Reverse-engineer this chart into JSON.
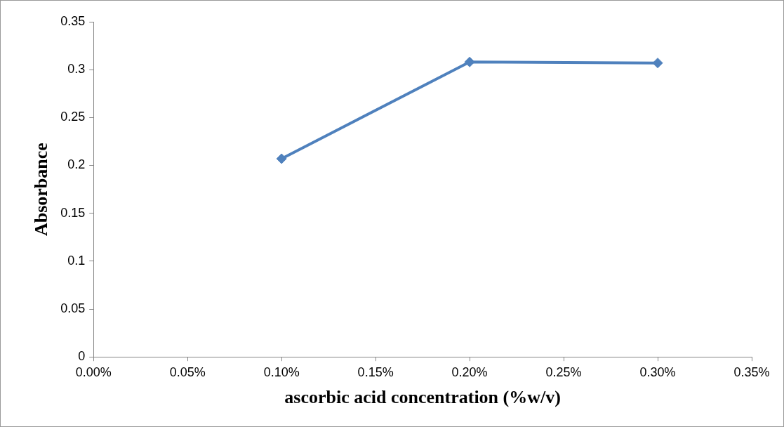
{
  "chart_data": {
    "type": "line",
    "xlabel": "ascorbic acid concentration (%w/v)",
    "ylabel": "Absorbance",
    "x": [
      0.1,
      0.2,
      0.3
    ],
    "series": [
      {
        "color": "#4f81bd",
        "values": [
          0.207,
          0.308,
          0.307
        ]
      }
    ],
    "xlim": [
      0,
      0.35
    ],
    "xticks": [
      {
        "value": 0,
        "label": "0.00%"
      },
      {
        "value": 0.05,
        "label": "0.05%"
      },
      {
        "value": 0.1,
        "label": "0.10%"
      },
      {
        "value": 0.15,
        "label": "0.15%"
      },
      {
        "value": 0.2,
        "label": "0.20%"
      },
      {
        "value": 0.25,
        "label": "0.25%"
      },
      {
        "value": 0.3,
        "label": "0.30%"
      },
      {
        "value": 0.35,
        "label": "0.35%"
      }
    ],
    "ylim": [
      0,
      0.35
    ],
    "yticks": [
      0,
      0.05,
      0.1,
      0.15,
      0.2,
      0.25,
      0.3,
      0.35
    ],
    "grid": false,
    "legend": false,
    "marker": "diamond",
    "line_style": "solid"
  }
}
